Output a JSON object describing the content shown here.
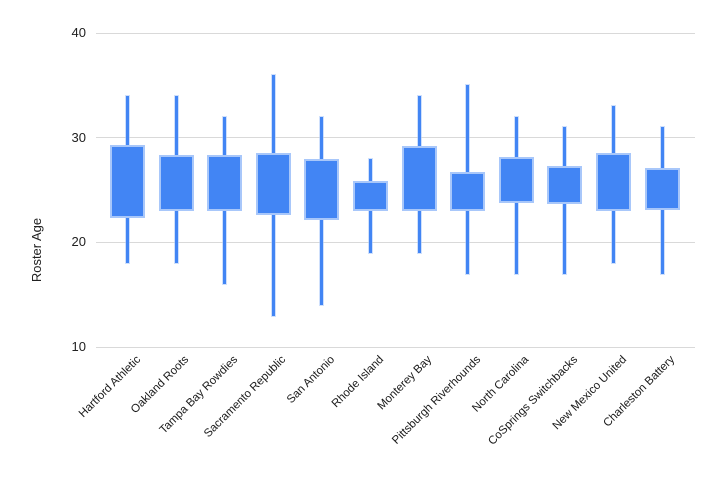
{
  "chart_data": {
    "type": "candlestick-box",
    "title": "",
    "xlabel": "",
    "ylabel": "Roster Age",
    "ylim": [
      10,
      40
    ],
    "y_ticks": [
      40,
      30,
      20,
      10
    ],
    "grid": true,
    "legend": "none",
    "categories": [
      "Hartford Athletic",
      "Oakland Roots",
      "Tampa Bay Rowdies",
      "Sacramento Republic",
      "San Antonio",
      "Rhode Island",
      "Monterey Bay",
      "Pittsburgh Riverhounds",
      "North Carolina",
      "CoSprings Switchbacks",
      "New Mexico United",
      "Charleston Battery"
    ],
    "teams": [
      {
        "label": "Hartford Athletic",
        "whisker_low": 18,
        "box_low": 22.3,
        "box_high": 29.3,
        "whisker_high": 34
      },
      {
        "label": "Oakland Roots",
        "whisker_low": 18,
        "box_low": 23.0,
        "box_high": 28.3,
        "whisker_high": 34
      },
      {
        "label": "Tampa Bay Rowdies",
        "whisker_low": 16,
        "box_low": 23.0,
        "box_high": 28.3,
        "whisker_high": 32
      },
      {
        "label": "Sacramento Republic",
        "whisker_low": 13,
        "box_low": 22.6,
        "box_high": 28.5,
        "whisker_high": 36
      },
      {
        "label": "San Antonio",
        "whisker_low": 14,
        "box_low": 22.1,
        "box_high": 28.0,
        "whisker_high": 32
      },
      {
        "label": "Rhode Island",
        "whisker_low": 19,
        "box_low": 23.0,
        "box_high": 25.9,
        "whisker_high": 28
      },
      {
        "label": "Monterey Bay",
        "whisker_low": 19,
        "box_low": 23.0,
        "box_high": 29.2,
        "whisker_high": 34
      },
      {
        "label": "Pittsburgh Riverhounds",
        "whisker_low": 17,
        "box_low": 23.0,
        "box_high": 26.7,
        "whisker_high": 35
      },
      {
        "label": "North Carolina",
        "whisker_low": 17,
        "box_low": 23.8,
        "box_high": 28.2,
        "whisker_high": 32
      },
      {
        "label": "CoSprings Switchbacks",
        "whisker_low": 17,
        "box_low": 23.7,
        "box_high": 27.3,
        "whisker_high": 31
      },
      {
        "label": "New Mexico United",
        "whisker_low": 18,
        "box_low": 23.0,
        "box_high": 28.5,
        "whisker_high": 33
      },
      {
        "label": "Charleston Battery",
        "whisker_low": 17,
        "box_low": 23.1,
        "box_high": 27.1,
        "whisker_high": 31
      }
    ],
    "colors": {
      "box_fill": "#4285F4",
      "box_border": "#A8C7FA",
      "whisker": "#4285F4",
      "gridline": "#D9D9D9",
      "text": "#212121",
      "background": "#FFFFFF"
    }
  }
}
